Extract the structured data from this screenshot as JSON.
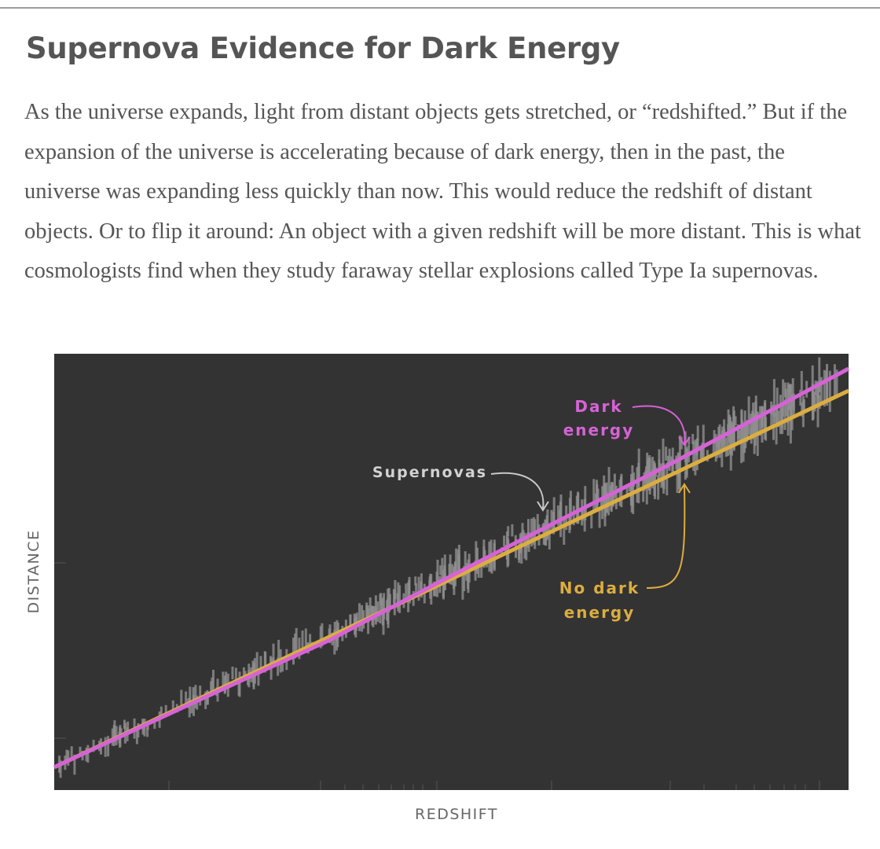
{
  "article": {
    "title": "Supernova Evidence for Dark Energy",
    "paragraph": "As the universe expands, light from distant objects gets stretched, or “redshifted.” But if the expansion of the universe is accelerating because of dark energy, then in the past, the universe was expanding less quickly than now. This would reduce the redshift of distant objects. Or to flip it around: An object with a given redshift will be more distant. This is what cosmologists find when they study faraway stellar explosions called Type Ia supernovas."
  },
  "colors": {
    "plot_background": "#333333",
    "dark_energy": "#d663d6",
    "no_dark_energy": "#dcad3f",
    "supernovas": "#8e8e8e",
    "axis_label": "#666666",
    "supernova_label": "#d2d2d2"
  },
  "chart_data": {
    "type": "scatter",
    "xlabel": "REDSHIFT",
    "ylabel": "DISTANCE",
    "x_scale": "log",
    "y_scale": "log",
    "tick_labels_shown": false,
    "grid": false,
    "series": [
      {
        "name": "Dark energy",
        "kind": "line",
        "color": "#d663d6"
      },
      {
        "name": "No dark energy",
        "kind": "line",
        "color": "#dcad3f"
      },
      {
        "name": "Supernovas",
        "kind": "points",
        "color": "#8e8e8e"
      }
    ],
    "annotations": {
      "dark_energy": [
        "Dark",
        "energy"
      ],
      "supernovas": [
        "Supernovas"
      ],
      "no_dark_energy": [
        "No dark",
        "energy"
      ]
    }
  }
}
